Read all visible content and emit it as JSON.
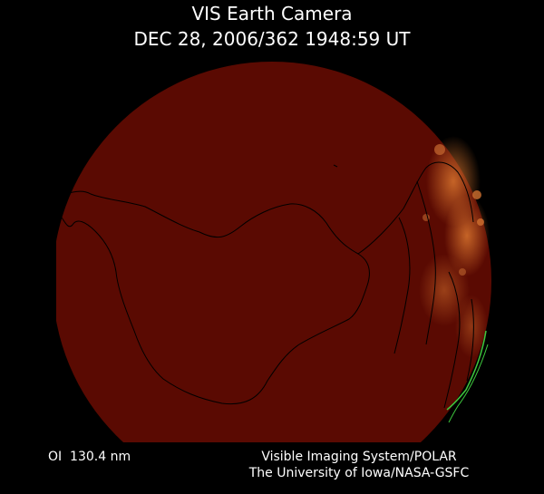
{
  "header": {
    "title": "VIS Earth Camera",
    "timestamp": "DEC 28, 2006/362 1948:59 UT"
  },
  "footer": {
    "wavelength": "OI  130.4 nm",
    "instrument": "Visible Imaging System/POLAR",
    "institution": "The University of Iowa/NASA-GSFC"
  }
}
